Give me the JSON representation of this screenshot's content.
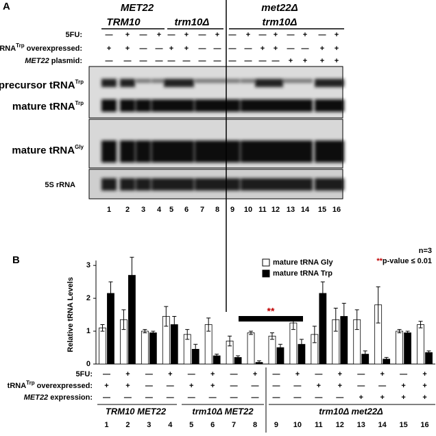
{
  "panel_a": {
    "label": "A",
    "group_top": [
      "MET22",
      "met22Δ"
    ],
    "group_sub": [
      "TRM10",
      "trm10Δ",
      "trm10Δ"
    ],
    "row_5fu": "5FU:",
    "row_trp": {
      "main": "tRNA",
      "sup": "Trp",
      "rest": " overexpressed:"
    },
    "row_met22": {
      "gene": "MET22",
      "rest": " plasmid:"
    },
    "band_labels": [
      {
        "main": "precursor tRNA",
        "sup": "Trp"
      },
      {
        "main": "mature tRNA",
        "sup": "Trp"
      },
      {
        "main": "mature tRNA",
        "sup": "Gly"
      },
      {
        "main": "5S rRNA"
      }
    ]
  },
  "conditions": {
    "fu": [
      "—",
      "+",
      "—",
      "+",
      "—",
      "+",
      "—",
      "+",
      "—",
      "+",
      "—",
      "+",
      "—",
      "+",
      "—",
      "+"
    ],
    "trp": [
      "+",
      "+",
      "—",
      "—",
      "+",
      "+",
      "—",
      "—",
      "—",
      "—",
      "+",
      "+",
      "—",
      "—",
      "+",
      "+"
    ],
    "met22": [
      "—",
      "—",
      "—",
      "—",
      "—",
      "—",
      "—",
      "—",
      "—",
      "—",
      "—",
      "—",
      "+",
      "+",
      "+",
      "+"
    ]
  },
  "chart_data": {
    "type": "bar",
    "label": "B",
    "y_label": "Relative tRNA Levels",
    "n_note": "n=3",
    "sig_stars": "**",
    "sig_note": "p-value ≤ 0.01",
    "sig_marker": "**",
    "categories": [
      "1",
      "2",
      "3",
      "4",
      "5",
      "6",
      "7",
      "8",
      "9",
      "10",
      "11",
      "12",
      "13",
      "14",
      "15",
      "16"
    ],
    "series": [
      {
        "name": "mature tRNA Gly",
        "color": "#ffffff",
        "values": [
          1.1,
          1.35,
          1.0,
          1.45,
          0.9,
          1.2,
          0.7,
          0.95,
          0.85,
          1.25,
          0.9,
          1.35,
          1.35,
          1.8,
          1.0,
          1.2
        ],
        "errors": [
          0.1,
          0.3,
          0.05,
          0.3,
          0.15,
          0.2,
          0.15,
          0.05,
          0.1,
          0.2,
          0.25,
          0.35,
          0.3,
          0.55,
          0.05,
          0.1
        ]
      },
      {
        "name": "mature tRNA Trp",
        "color": "#000000",
        "values": [
          2.15,
          2.7,
          0.95,
          1.2,
          0.45,
          0.25,
          0.2,
          0.05,
          0.5,
          0.6,
          2.15,
          1.45,
          0.3,
          0.15,
          0.95,
          0.35
        ],
        "errors": [
          0.35,
          0.55,
          0.05,
          0.25,
          0.15,
          0.05,
          0.05,
          0.05,
          0.1,
          0.15,
          0.35,
          0.4,
          0.1,
          0.05,
          0.05,
          0.05
        ]
      }
    ],
    "ylim": [
      0,
      3.15
    ],
    "yticks": [
      0,
      1,
      2,
      3
    ],
    "row_5fu": "5FU:",
    "row_trp": {
      "main": "tRNA",
      "sup": "Trp",
      "rest": " overexpressed:"
    },
    "row_met22": {
      "gene": "MET22",
      "rest": " expression:"
    },
    "groups": [
      "TRM10 MET22",
      "trm10Δ MET22",
      "trm10Δ met22Δ"
    ]
  }
}
